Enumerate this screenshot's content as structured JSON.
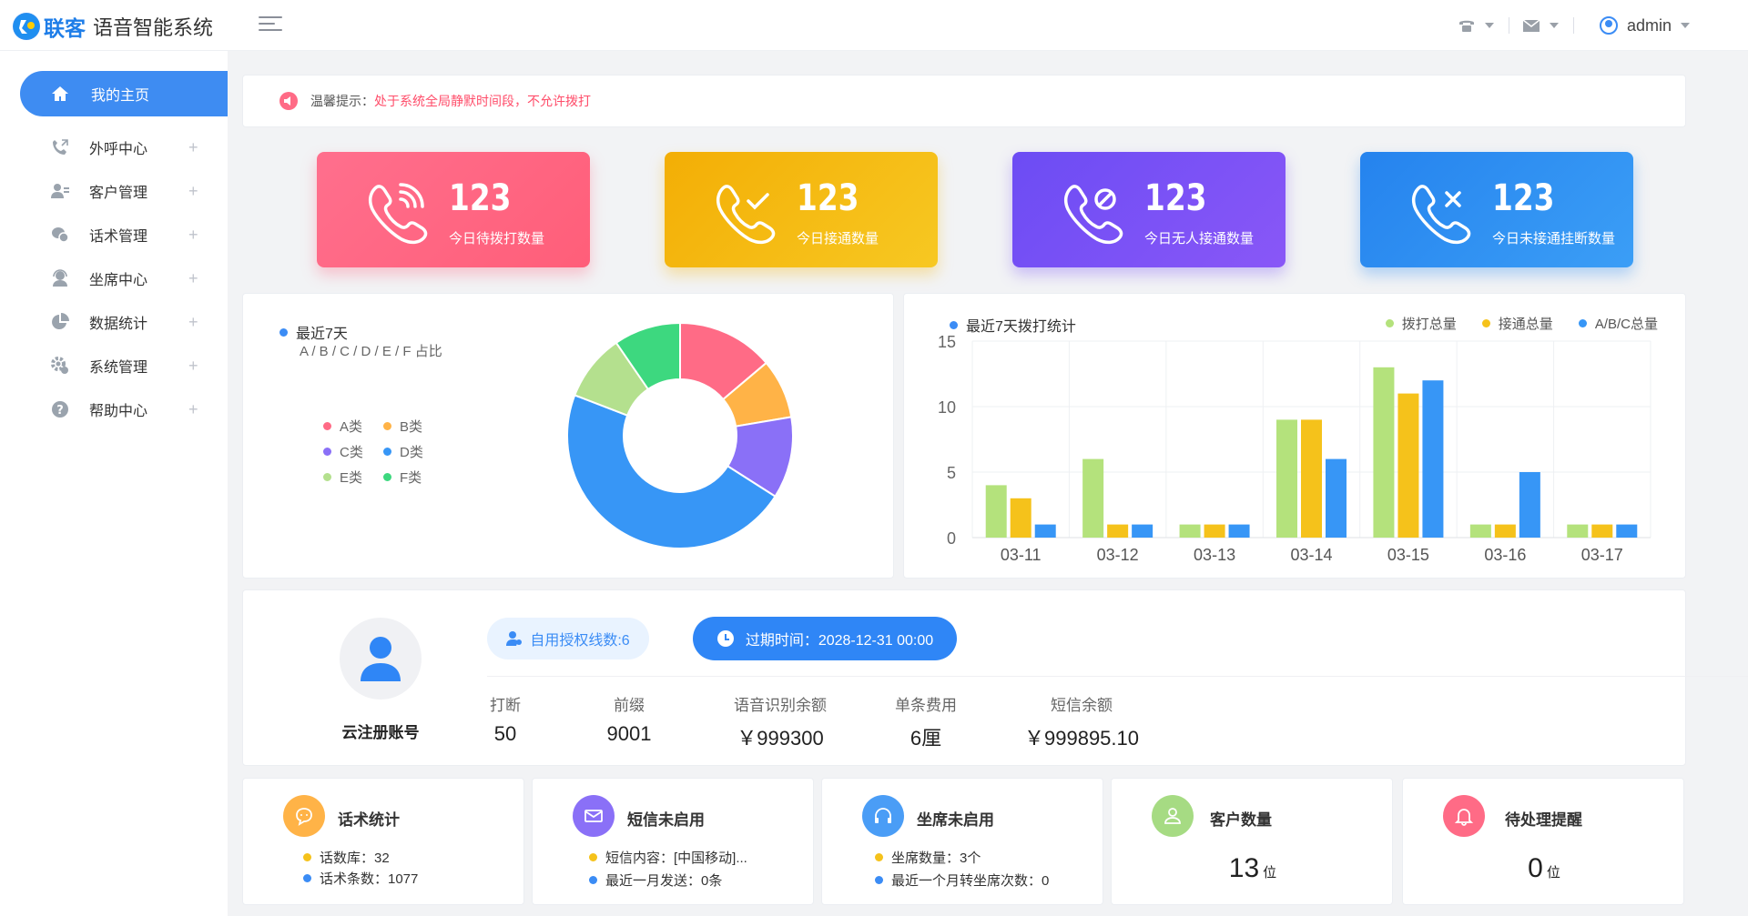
{
  "brand": {
    "name": "联客",
    "subtitle": "语音智能系统"
  },
  "user": {
    "name": "admin"
  },
  "sidebar": {
    "items": [
      {
        "label": "我的主页",
        "icon": "home-icon",
        "active": true
      },
      {
        "label": "外呼中心",
        "icon": "phone-call-icon",
        "plus": "+"
      },
      {
        "label": "客户管理",
        "icon": "customer-icon",
        "plus": "+"
      },
      {
        "label": "话术管理",
        "icon": "script-icon",
        "plus": "+"
      },
      {
        "label": "坐席中心",
        "icon": "agent-icon",
        "plus": "+"
      },
      {
        "label": "数据统计",
        "icon": "pie-chart-icon",
        "plus": "+"
      },
      {
        "label": "系统管理",
        "icon": "settings-icon",
        "plus": "+"
      },
      {
        "label": "帮助中心",
        "icon": "help-icon",
        "plus": "+"
      }
    ]
  },
  "notice": {
    "label": "温馨提示：",
    "text": "处于系统全局静默时间段，不允许拨打"
  },
  "stats": [
    {
      "value": "123",
      "label": "今日待拨打数量",
      "color": "#ff6b86",
      "icon": "phone-ringing-icon"
    },
    {
      "value": "123",
      "label": "今日接通数量",
      "color": "#f6b70f",
      "icon": "phone-check-icon"
    },
    {
      "value": "123",
      "label": "今日无人接通数量",
      "color": "#7a55f5",
      "icon": "phone-blocked-icon"
    },
    {
      "value": "123",
      "label": "今日未接通挂断数量",
      "color": "#2f8bf0",
      "icon": "phone-x-icon"
    }
  ],
  "pie": {
    "title": "最近7天",
    "subtitle": "A / B / C / D / E / F 占比",
    "legend": [
      {
        "label": "A类",
        "color": "#ff6b86"
      },
      {
        "label": "B类",
        "color": "#ffb347"
      },
      {
        "label": "C类",
        "color": "#8a70f7"
      },
      {
        "label": "D类",
        "color": "#3796f6"
      },
      {
        "label": "E类",
        "color": "#b4e08e"
      },
      {
        "label": "F类",
        "color": "#3dd87f"
      }
    ]
  },
  "bar_chart_title": "最近7天拨打统计",
  "chart_data": [
    {
      "type": "pie",
      "donut": true,
      "slices": [
        {
          "label": "A类",
          "value": 13,
          "color": "#ff6b86"
        },
        {
          "label": "B类",
          "value": 8,
          "color": "#ffb347"
        },
        {
          "label": "C类",
          "value": 11,
          "color": "#8a70f7"
        },
        {
          "label": "D类",
          "value": 44,
          "color": "#3796f6"
        },
        {
          "label": "E类",
          "value": 9,
          "color": "#b4e08e"
        },
        {
          "label": "F类",
          "value": 9,
          "color": "#3dd87f"
        }
      ]
    },
    {
      "type": "bar",
      "title": "最近7天拨打统计",
      "categories": [
        "03-11",
        "03-12",
        "03-13",
        "03-14",
        "03-15",
        "03-16",
        "03-17"
      ],
      "ylim": [
        0,
        15
      ],
      "yticks": [
        0,
        5,
        10,
        15
      ],
      "grid": true,
      "legend_position": "top-right",
      "series": [
        {
          "name": "拨打总量",
          "color": "#b4e27c",
          "values": [
            4,
            6,
            1,
            9,
            13,
            1,
            1
          ]
        },
        {
          "name": "接通总量",
          "color": "#f5c21b",
          "values": [
            3,
            1,
            1,
            9,
            11,
            1,
            1
          ]
        },
        {
          "name": "A/B/C总量",
          "color": "#3796f6",
          "values": [
            1,
            1,
            1,
            6,
            12,
            5,
            1
          ]
        }
      ]
    }
  ],
  "profile": {
    "account": "云注册账号",
    "auth_lines": "自用授权线数:6",
    "expire": "过期时间：2028-12-31  00:00",
    "fields": [
      {
        "label": "打断",
        "value": "50"
      },
      {
        "label": "前缀",
        "value": "9001"
      },
      {
        "label": "语音识别余额",
        "value": "￥999300"
      },
      {
        "label": "单条费用",
        "value": "6厘"
      },
      {
        "label": "短信余额",
        "value": "￥999895.10"
      }
    ]
  },
  "bottom": [
    {
      "title": "话术统计",
      "icon": "chat-icon",
      "color": "#ffb347",
      "lines": [
        "话数库：32",
        "话术条数：1077"
      ]
    },
    {
      "title": "短信未启用",
      "icon": "mail-icon",
      "color": "#8a70f7",
      "lines": [
        "短信内容：[中国移动]...",
        "最近一月发送：0条"
      ]
    },
    {
      "title": "坐席未启用",
      "icon": "headset-icon",
      "color": "#4a9df6",
      "lines": [
        "坐席数量：3个",
        "最近一个月转坐席次数：0"
      ]
    },
    {
      "title": "客户数量",
      "icon": "user-icon",
      "color": "#a6db83",
      "big": "13",
      "unit": "位"
    },
    {
      "title": "待处理提醒",
      "icon": "bell-icon",
      "color": "#ff6b86",
      "big": "0",
      "unit": "位"
    }
  ]
}
